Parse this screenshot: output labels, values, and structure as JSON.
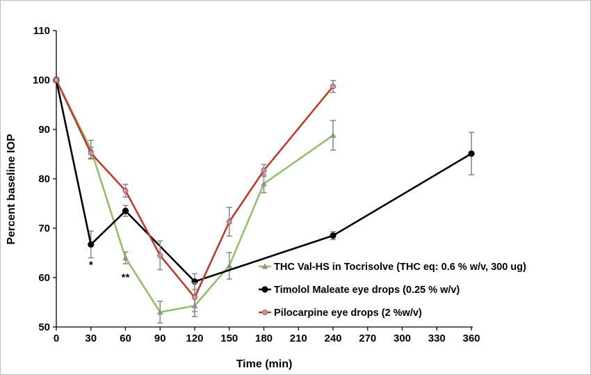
{
  "chart_data": {
    "type": "line",
    "xlabel": "Time (min)",
    "ylabel": "Percent baseline IOP",
    "xlim": [
      0,
      360
    ],
    "ylim": [
      50,
      110
    ],
    "x_ticks": [
      0,
      30,
      60,
      90,
      120,
      150,
      180,
      210,
      240,
      270,
      300,
      330,
      360
    ],
    "y_ticks": [
      50,
      60,
      70,
      80,
      90,
      100,
      110
    ],
    "grid": false,
    "legend_position": "lower-right",
    "series": [
      {
        "name": "THC Val-HS in Tocrisolve (THC eq: 0.6 % w/v, 300 ug)",
        "color": "#92c06a",
        "marker": "triangle",
        "x": [
          0,
          30,
          60,
          90,
          120,
          150,
          180,
          240
        ],
        "y": [
          100,
          86,
          64,
          53,
          54.3,
          62.4,
          79,
          88.8
        ],
        "err": [
          0.5,
          1.8,
          1.2,
          2.2,
          2.2,
          2.7,
          1.8,
          3.0
        ]
      },
      {
        "name": "Timolol Maleate eye drops (0.25 % w/v)",
        "color": "#000000",
        "marker": "circle",
        "x": [
          0,
          30,
          60,
          120,
          240,
          360
        ],
        "y": [
          100,
          66.7,
          73.5,
          59.2,
          68.5,
          85.1
        ],
        "err": [
          0.4,
          2.7,
          1.1,
          1.6,
          0.8,
          4.3
        ]
      },
      {
        "name": "Pilocarpine eye drops (2 %w/v)",
        "color": "#c0392b",
        "marker": "circle",
        "x": [
          0,
          30,
          60,
          90,
          120,
          150,
          180,
          240
        ],
        "y": [
          100,
          85.2,
          77.6,
          64.5,
          56,
          71.3,
          81.7,
          98.7
        ],
        "err": [
          0.4,
          1.2,
          1.3,
          2.9,
          2.9,
          2.9,
          1.2,
          1.2
        ]
      }
    ],
    "annotations": [
      {
        "text": "*",
        "x": 30,
        "y": 63
      },
      {
        "text": "**",
        "x": 60,
        "y": 60.5
      }
    ]
  }
}
